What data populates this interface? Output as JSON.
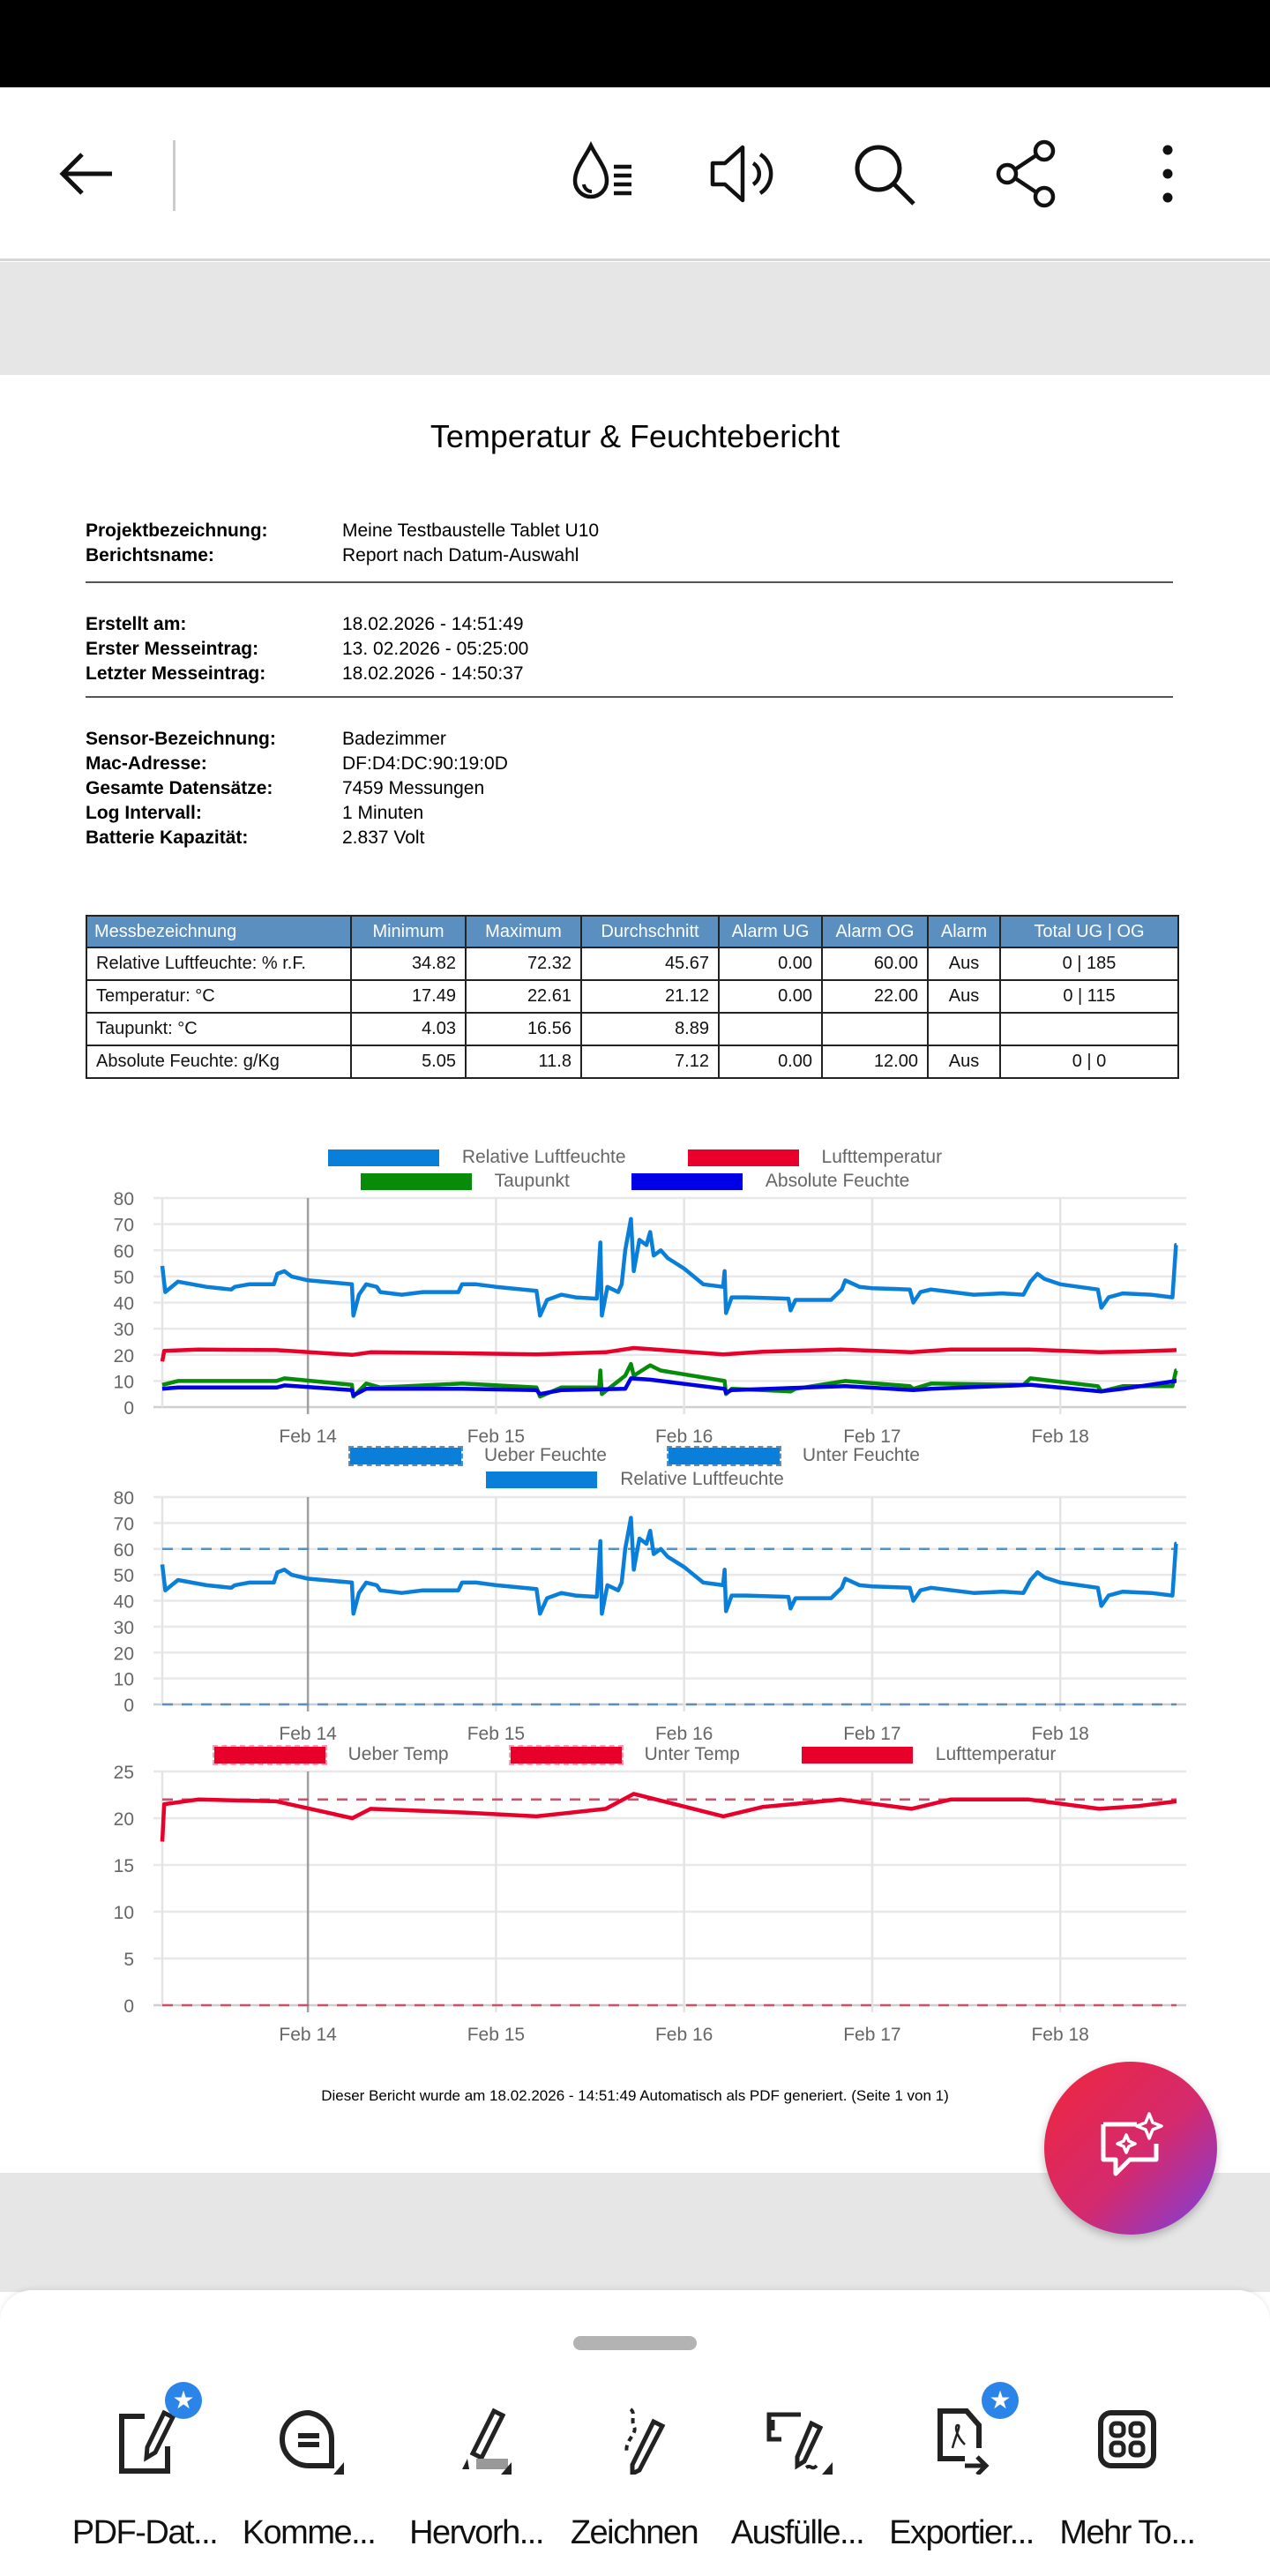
{
  "appbar": {
    "icons": [
      "back-arrow-icon",
      "liquid-mode-icon",
      "read-aloud-icon",
      "search-icon",
      "share-icon",
      "more-vert-icon"
    ]
  },
  "report": {
    "title": "Temperatur & Feuchtebericht",
    "project": {
      "label": "Projektbezeichnung:",
      "value": "Meine Testbaustelle Tablet U10"
    },
    "report_name": {
      "label": "Berichtsname:",
      "value": "Report nach Datum-Auswahl"
    },
    "created": {
      "label": "Erstellt am:",
      "value": "18.02.2026 - 14:51:49"
    },
    "first": {
      "label": "Erster Messeintrag:",
      "value": "13. 02.2026 - 05:25:00"
    },
    "last": {
      "label": "Letzter Messeintrag:",
      "value": "18.02.2026 - 14:50:37"
    },
    "sensor": {
      "label": "Sensor-Bezeichnung:",
      "value": "Badezimmer"
    },
    "mac": {
      "label": "Mac-Adresse:",
      "value": "DF:D4:DC:90:19:0D"
    },
    "records": {
      "label": "Gesamte Datensätze:",
      "value": "7459 Messungen"
    },
    "interval": {
      "label": "Log Intervall:",
      "value": "1 Minuten"
    },
    "battery": {
      "label": "Batterie Kapazität:",
      "value": "2.837 Volt"
    },
    "table": {
      "headers": [
        "Messbezeichnung",
        "Minimum",
        "Maximum",
        "Durchschnitt",
        "Alarm UG",
        "Alarm OG",
        "Alarm",
        "Total UG | OG"
      ],
      "rows": [
        [
          "Relative Luftfeuchte:  % r.F.",
          "34.82",
          "72.32",
          "45.67",
          "0.00",
          "60.00",
          "Aus",
          "0 | 185"
        ],
        [
          "Temperatur: °C",
          "17.49",
          "22.61",
          "21.12",
          "0.00",
          "22.00",
          "Aus",
          "0 | 115"
        ],
        [
          "Taupunkt: °C",
          "4.03",
          "16.56",
          "8.89",
          "",
          "",
          "",
          ""
        ],
        [
          "Absolute Feuchte: g/Kg",
          "5.05",
          "11.8",
          "7.12",
          "0.00",
          "12.00",
          "Aus",
          "0 | 0"
        ]
      ]
    },
    "footer": "Dieser Bericht wurde am 18.02.2026 - 14:51:49 Automatisch als PDF generiert. (Seite 1 von 1)"
  },
  "chart_data": [
    {
      "type": "line",
      "ylim": [
        0,
        80
      ],
      "ytick_step": 10,
      "grid": true,
      "legend_placement": "top",
      "xlim": [
        "2026-02-13 05:25",
        "2026-02-18 14:50"
      ],
      "xticks": [
        [
          "2026-02-14 00:00",
          "Feb 14"
        ],
        [
          "2026-02-15 00:00",
          "Feb 15"
        ],
        [
          "2026-02-16 00:00",
          "Feb 16"
        ],
        [
          "2026-02-17 00:00",
          "Feb 17"
        ],
        [
          "2026-02-18 00:00",
          "Feb 18"
        ]
      ],
      "series": [
        {
          "name": "Relative Luftfeuchte",
          "color": "#0a7fd9",
          "points": [
            [
              "2026-02-13 05:25",
              54
            ],
            [
              "2026-02-13 05:48",
              44
            ],
            [
              "2026-02-13 07:25",
              48
            ],
            [
              "2026-02-13 11:02",
              46
            ],
            [
              "2026-02-13 14:13",
              45
            ],
            [
              "2026-02-13 14:40",
              46
            ],
            [
              "2026-02-13 16:29",
              47
            ],
            [
              "2026-02-13 19:39",
              47
            ],
            [
              "2026-02-13 20:06",
              51
            ],
            [
              "2026-02-13 21:00",
              52
            ],
            [
              "2026-02-13 21:55",
              50
            ],
            [
              "2026-02-14 00:00",
              48.5
            ],
            [
              "2026-02-14 05:37",
              47
            ],
            [
              "2026-02-14 05:48",
              35
            ],
            [
              "2026-02-14 06:31",
              43
            ],
            [
              "2026-02-14 07:26",
              47
            ],
            [
              "2026-02-14 08:47",
              46
            ],
            [
              "2026-02-14 09:14",
              44
            ],
            [
              "2026-02-14 11:58",
              43
            ],
            [
              "2026-02-14 14:41",
              44
            ],
            [
              "2026-02-14 19:12",
              44
            ],
            [
              "2026-02-14 19:40",
              47
            ],
            [
              "2026-02-14 21:28",
              47
            ],
            [
              "2026-02-15 00:00",
              46
            ],
            [
              "2026-02-15 05:10",
              44.5
            ],
            [
              "2026-02-15 05:37",
              35
            ],
            [
              "2026-02-15 06:31",
              41
            ],
            [
              "2026-02-15 08:20",
              43
            ],
            [
              "2026-02-15 10:09",
              42
            ],
            [
              "2026-02-15 12:52",
              41.5
            ],
            [
              "2026-02-15 13:19",
              63
            ],
            [
              "2026-02-15 13:30",
              35
            ],
            [
              "2026-02-15 14:13",
              46
            ],
            [
              "2026-02-15 15:35",
              44
            ],
            [
              "2026-02-15 16:02",
              47
            ],
            [
              "2026-02-15 16:29",
              60
            ],
            [
              "2026-02-15 17:13",
              72
            ],
            [
              "2026-02-15 17:35",
              52
            ],
            [
              "2026-02-15 18:18",
              64
            ],
            [
              "2026-02-15 19:12",
              62
            ],
            [
              "2026-02-15 19:40",
              67
            ],
            [
              "2026-02-15 20:07",
              58
            ],
            [
              "2026-02-15 21:01",
              60
            ],
            [
              "2026-02-15 21:55",
              57
            ],
            [
              "2026-02-16 00:00",
              53
            ],
            [
              "2026-02-16 02:27",
              47
            ],
            [
              "2026-02-16 04:59",
              46
            ],
            [
              "2026-02-16 05:10",
              52
            ],
            [
              "2026-02-16 05:21",
              36
            ],
            [
              "2026-02-16 06:04",
              42
            ],
            [
              "2026-02-16 07:53",
              42
            ],
            [
              "2026-02-16 13:19",
              41.5
            ],
            [
              "2026-02-16 13:35",
              37
            ],
            [
              "2026-02-16 14:13",
              41
            ],
            [
              "2026-02-16 18:45",
              41
            ],
            [
              "2026-02-16 20:07",
              45
            ],
            [
              "2026-02-16 20:34",
              48.5
            ],
            [
              "2026-02-16 22:23",
              46
            ],
            [
              "2026-02-17 00:00",
              45.5
            ],
            [
              "2026-02-17 04:48",
              45
            ],
            [
              "2026-02-17 05:15",
              40
            ],
            [
              "2026-02-17 06:10",
              44
            ],
            [
              "2026-02-17 07:31",
              45
            ],
            [
              "2026-02-17 12:57",
              43
            ],
            [
              "2026-02-17 16:35",
              43.5
            ],
            [
              "2026-02-17 19:18",
              43
            ],
            [
              "2026-02-17 20:12",
              48
            ],
            [
              "2026-02-17 21:06",
              51
            ],
            [
              "2026-02-17 22:00",
              49
            ],
            [
              "2026-02-18 00:00",
              47
            ],
            [
              "2026-02-18 04:48",
              45
            ],
            [
              "2026-02-18 05:15",
              38
            ],
            [
              "2026-02-18 06:10",
              42
            ],
            [
              "2026-02-18 07:58",
              43.5
            ],
            [
              "2026-02-18 11:36",
              43
            ],
            [
              "2026-02-18 14:19",
              42
            ],
            [
              "2026-02-18 14:46",
              62
            ],
            [
              "2026-02-18 14:50",
              62
            ]
          ]
        },
        {
          "name": "Lufttemperatur",
          "color": "#e8002a",
          "points": [
            [
              "2026-02-13 05:25",
              17.5
            ],
            [
              "2026-02-13 05:40",
              21.5
            ],
            [
              "2026-02-13 10:00",
              22
            ],
            [
              "2026-02-13 20:00",
              21.8
            ],
            [
              "2026-02-14 05:40",
              20
            ],
            [
              "2026-02-14 08:00",
              21
            ],
            [
              "2026-02-14 20:00",
              20.6
            ],
            [
              "2026-02-15 05:10",
              20.2
            ],
            [
              "2026-02-15 14:00",
              21
            ],
            [
              "2026-02-15 17:35",
              22.6
            ],
            [
              "2026-02-16 05:00",
              20.2
            ],
            [
              "2026-02-16 10:00",
              21.2
            ],
            [
              "2026-02-16 20:00",
              22
            ],
            [
              "2026-02-17 05:00",
              21
            ],
            [
              "2026-02-17 10:00",
              22
            ],
            [
              "2026-02-17 20:00",
              22
            ],
            [
              "2026-02-18 05:00",
              21
            ],
            [
              "2026-02-18 10:00",
              21.3
            ],
            [
              "2026-02-18 14:50",
              21.8
            ]
          ]
        },
        {
          "name": "Taupunkt",
          "color": "#078c0a",
          "points": [
            [
              "2026-02-13 05:25",
              8.5
            ],
            [
              "2026-02-13 07:25",
              10
            ],
            [
              "2026-02-13 20:00",
              10
            ],
            [
              "2026-02-13 21:00",
              11
            ],
            [
              "2026-02-14 05:37",
              8.5
            ],
            [
              "2026-02-14 05:48",
              4
            ],
            [
              "2026-02-14 07:26",
              9
            ],
            [
              "2026-02-14 09:14",
              7.5
            ],
            [
              "2026-02-14 19:40",
              9
            ],
            [
              "2026-02-15 05:10",
              7.5
            ],
            [
              "2026-02-15 05:37",
              4
            ],
            [
              "2026-02-15 08:20",
              7.5
            ],
            [
              "2026-02-15 13:10",
              7.5
            ],
            [
              "2026-02-15 13:19",
              14
            ],
            [
              "2026-02-15 13:30",
              5
            ],
            [
              "2026-02-15 16:29",
              12
            ],
            [
              "2026-02-15 17:13",
              16.5
            ],
            [
              "2026-02-15 17:35",
              12
            ],
            [
              "2026-02-15 19:40",
              16
            ],
            [
              "2026-02-15 21:00",
              14
            ],
            [
              "2026-02-16 05:10",
              10
            ],
            [
              "2026-02-16 05:21",
              5
            ],
            [
              "2026-02-16 06:04",
              7
            ],
            [
              "2026-02-16 13:35",
              6
            ],
            [
              "2026-02-16 14:13",
              7
            ],
            [
              "2026-02-16 20:34",
              10
            ],
            [
              "2026-02-17 04:48",
              8
            ],
            [
              "2026-02-17 05:15",
              7
            ],
            [
              "2026-02-17 07:31",
              9
            ],
            [
              "2026-02-17 19:18",
              8.5
            ],
            [
              "2026-02-17 20:12",
              11
            ],
            [
              "2026-02-18 04:48",
              8
            ],
            [
              "2026-02-18 05:15",
              6
            ],
            [
              "2026-02-18 07:58",
              8
            ],
            [
              "2026-02-18 14:19",
              8
            ],
            [
              "2026-02-18 14:46",
              14
            ],
            [
              "2026-02-18 14:50",
              14
            ]
          ]
        },
        {
          "name": "Absolute Feuchte",
          "color": "#0000e6",
          "points": [
            [
              "2026-02-13 05:25",
              7
            ],
            [
              "2026-02-13 07:25",
              7.5
            ],
            [
              "2026-02-13 20:00",
              7.5
            ],
            [
              "2026-02-13 21:00",
              8.3
            ],
            [
              "2026-02-14 05:37",
              6.5
            ],
            [
              "2026-02-14 05:48",
              4.5
            ],
            [
              "2026-02-14 07:26",
              7
            ],
            [
              "2026-02-14 19:40",
              7
            ],
            [
              "2026-02-15 05:10",
              6.5
            ],
            [
              "2026-02-15 05:37",
              5
            ],
            [
              "2026-02-15 08:20",
              6.5
            ],
            [
              "2026-02-15 16:29",
              7
            ],
            [
              "2026-02-15 17:13",
              11
            ],
            [
              "2026-02-15 19:40",
              10.5
            ],
            [
              "2026-02-16 05:10",
              7
            ],
            [
              "2026-02-16 05:21",
              5.5
            ],
            [
              "2026-02-16 06:04",
              6.5
            ],
            [
              "2026-02-16 20:34",
              8
            ],
            [
              "2026-02-17 05:15",
              6.5
            ],
            [
              "2026-02-17 07:31",
              7
            ],
            [
              "2026-02-17 20:12",
              8.5
            ],
            [
              "2026-02-18 05:15",
              6
            ],
            [
              "2026-02-18 07:58",
              7
            ],
            [
              "2026-02-18 14:46",
              10
            ],
            [
              "2026-02-18 14:50",
              10
            ]
          ]
        }
      ]
    },
    {
      "type": "line",
      "ylim": [
        0,
        80
      ],
      "ytick_step": 10,
      "grid": true,
      "legend_placement": "top",
      "xlim": [
        "2026-02-13 05:25",
        "2026-02-18 14:50"
      ],
      "xticks": [
        [
          "2026-02-14 00:00",
          "Feb 14"
        ],
        [
          "2026-02-15 00:00",
          "Feb 15"
        ],
        [
          "2026-02-16 00:00",
          "Feb 16"
        ],
        [
          "2026-02-17 00:00",
          "Feb 17"
        ],
        [
          "2026-02-18 00:00",
          "Feb 18"
        ]
      ],
      "series": [
        {
          "name": "Ueber Feuchte",
          "color": "#5a8fc0",
          "dashed": true,
          "value": 60
        },
        {
          "name": "Unter Feuchte",
          "color": "#5a8fc0",
          "dashed": true,
          "value": 0
        },
        {
          "name": "Relative Luftfeuchte",
          "color": "#0a7fd9"
        }
      ]
    },
    {
      "type": "line",
      "ylim": [
        0,
        25
      ],
      "ytick_step": 5,
      "grid": true,
      "legend_placement": "top",
      "xlim": [
        "2026-02-13 05:25",
        "2026-02-18 14:50"
      ],
      "xticks": [
        [
          "2026-02-14 00:00",
          "Feb 14"
        ],
        [
          "2026-02-15 00:00",
          "Feb 15"
        ],
        [
          "2026-02-16 00:00",
          "Feb 16"
        ],
        [
          "2026-02-17 00:00",
          "Feb 17"
        ],
        [
          "2026-02-18 00:00",
          "Feb 18"
        ]
      ],
      "series": [
        {
          "name": "Ueber Temp",
          "color": "#c9516a",
          "dashed": true,
          "value": 22
        },
        {
          "name": "Unter Temp",
          "color": "#c9516a",
          "dashed": true,
          "value": 0
        },
        {
          "name": "Lufttemperatur",
          "color": "#e8002a"
        }
      ]
    }
  ],
  "toolbar": {
    "items": [
      {
        "label": "PDF-Dat...",
        "icon": "edit-pdf-icon",
        "premium": true
      },
      {
        "label": "Komme...",
        "icon": "comment-icon"
      },
      {
        "label": "Hervorh...",
        "icon": "highlight-icon"
      },
      {
        "label": "Zeichnen",
        "icon": "draw-icon"
      },
      {
        "label": "Ausfülle...",
        "icon": "fill-sign-icon"
      },
      {
        "label": "Exportier...",
        "icon": "export-pdf-icon",
        "premium": true
      },
      {
        "label": "Mehr To...",
        "icon": "more-tools-icon"
      }
    ]
  },
  "fab": {
    "icon": "ai-assistant-icon"
  }
}
